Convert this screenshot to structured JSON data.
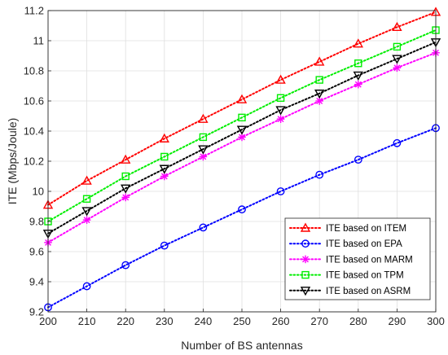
{
  "chart_data": {
    "type": "line",
    "title": "",
    "xlabel": "Number of BS antennas",
    "ylabel": "ITE (Mbps/Joule)",
    "x": [
      200,
      210,
      220,
      230,
      240,
      250,
      260,
      270,
      280,
      290,
      300
    ],
    "xlim": [
      200,
      300
    ],
    "ylim": [
      9.2,
      11.2
    ],
    "xticks": [
      "200",
      "210",
      "220",
      "230",
      "240",
      "250",
      "260",
      "270",
      "280",
      "290",
      "300"
    ],
    "yticks": [
      "9.2",
      "9.4",
      "9.6",
      "9.8",
      "10",
      "10.2",
      "10.4",
      "10.6",
      "10.8",
      "11",
      "11.2"
    ],
    "grid": true,
    "legend_position": "bottom-right",
    "series": [
      {
        "name": "ITE based on ITEM",
        "color": "#ff0000",
        "marker": "triangle-up",
        "values": [
          9.91,
          10.07,
          10.21,
          10.35,
          10.48,
          10.61,
          10.74,
          10.86,
          10.98,
          11.09,
          11.19
        ]
      },
      {
        "name": "ITE based on EPA",
        "color": "#0000ff",
        "marker": "circle",
        "values": [
          9.23,
          9.37,
          9.51,
          9.64,
          9.76,
          9.88,
          10.0,
          10.11,
          10.21,
          10.32,
          10.42
        ]
      },
      {
        "name": "ITE based on MARM",
        "color": "#ff00ff",
        "marker": "asterisk",
        "values": [
          9.66,
          9.81,
          9.96,
          10.1,
          10.23,
          10.36,
          10.48,
          10.6,
          10.71,
          10.82,
          10.92
        ]
      },
      {
        "name": "ITE based on TPM",
        "color": "#00ee00",
        "marker": "square",
        "values": [
          9.8,
          9.95,
          10.1,
          10.23,
          10.36,
          10.49,
          10.62,
          10.74,
          10.85,
          10.96,
          11.07
        ]
      },
      {
        "name": "ITE based on ASRM",
        "color": "#000000",
        "marker": "triangle-down",
        "values": [
          9.72,
          9.87,
          10.02,
          10.15,
          10.28,
          10.41,
          10.54,
          10.65,
          10.77,
          10.88,
          10.99
        ]
      }
    ]
  }
}
